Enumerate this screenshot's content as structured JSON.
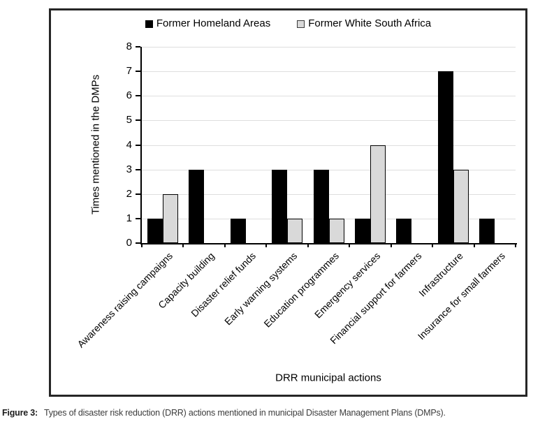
{
  "figure": {
    "caption_label": "Figure 3:",
    "caption_text": "Types of disaster risk reduction (DRR) actions mentioned in municipal Disaster Management Plans (DMPs)."
  },
  "chart_data": {
    "type": "bar",
    "categories": [
      "Awareness raising campaigns",
      "Capacity building",
      "Disaster relief funds",
      "Early warning systems",
      "Education programmes",
      "Emergency services",
      "Financial support for farmers",
      "Infrastructure",
      "Insurance for small farmers"
    ],
    "series": [
      {
        "name": "Former Homeland Areas",
        "color": "#000000",
        "values": [
          1,
          3,
          1,
          3,
          3,
          1,
          1,
          7,
          1
        ]
      },
      {
        "name": "Former White South Africa",
        "color": "#d9d9d9",
        "values": [
          2,
          0,
          0,
          1,
          1,
          4,
          0,
          3,
          0
        ]
      }
    ],
    "xlabel": "DRR municipal actions",
    "ylabel": "Times mentioned in the DMPs",
    "ylim": [
      0,
      8
    ],
    "ytick_step": 1,
    "grid": true,
    "legend_position": "top",
    "colors": {
      "gridline": "#dedede",
      "axis": "#000000",
      "bar_border": "#000000",
      "figure_border": "#262626"
    }
  }
}
